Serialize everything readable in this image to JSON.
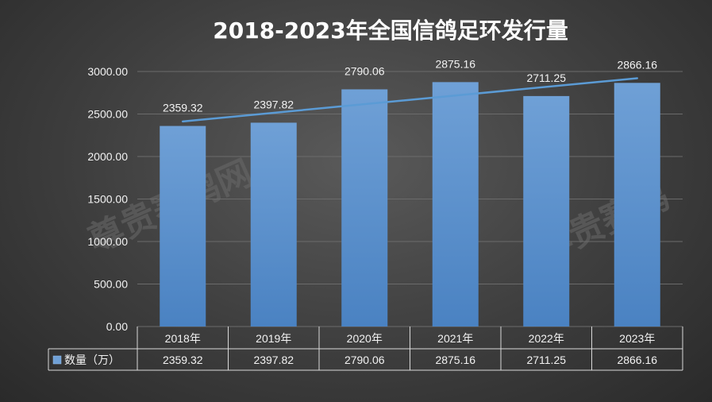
{
  "chart_data": {
    "type": "bar",
    "title": "2018-2023年全国信鸽足环发行量",
    "categories": [
      "2018年",
      "2019年",
      "2020年",
      "2021年",
      "2022年",
      "2023年"
    ],
    "series": [
      {
        "name": "数量（万）",
        "values": [
          2359.32,
          2397.82,
          2790.06,
          2875.16,
          2711.25,
          2866.16
        ]
      }
    ],
    "data_labels": [
      "2359.32",
      "2397.82",
      "2790.06",
      "2875.16",
      "2711.25",
      "2866.16"
    ],
    "yticks": [
      "0.00",
      "500.00",
      "1000.00",
      "1500.00",
      "2000.00",
      "2500.00",
      "3000.00"
    ],
    "ylim": [
      0,
      3000
    ],
    "trendline": "linear",
    "grid": true,
    "data_table": true,
    "colors": {
      "bar_top": "#6fa0d6",
      "bar_bottom": "#4a82c2",
      "trendline": "#5b9bd5"
    }
  },
  "watermark": {
    "text_left": "尊贵赛鸽网",
    "text_right": "尊贵赛鸽"
  }
}
